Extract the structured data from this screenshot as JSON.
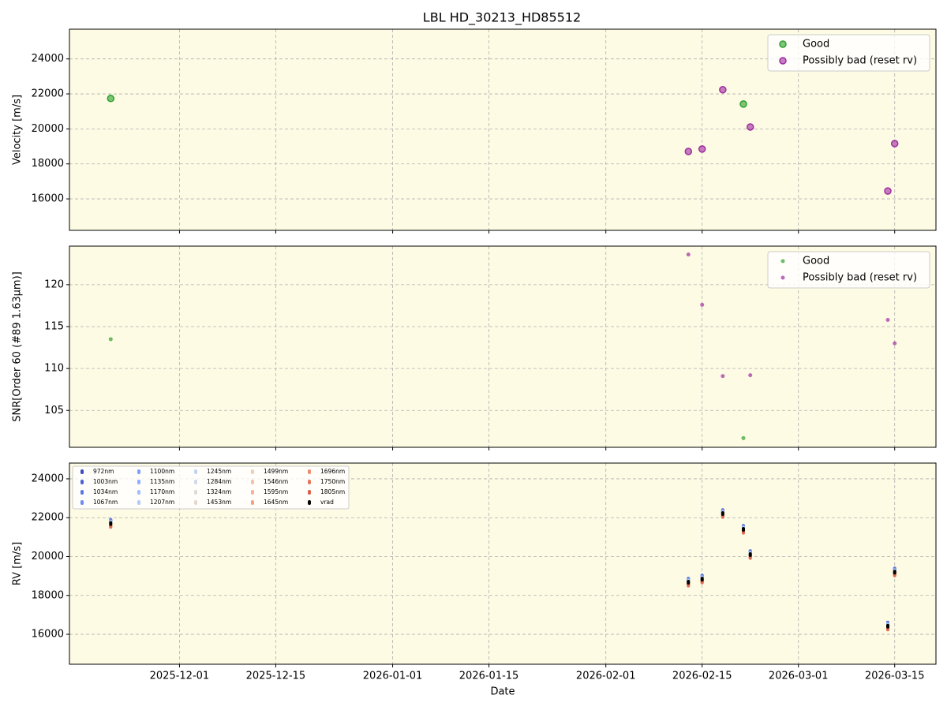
{
  "chart_data": [
    {
      "type": "scatter",
      "title": "LBL HD_30213_HD85512",
      "ylabel": "Velocity [m/s]",
      "x": [
        "2025-11-21",
        "2026-02-13",
        "2026-02-15",
        "2026-02-18",
        "2026-02-21",
        "2026-02-22",
        "2026-03-14",
        "2026-03-15"
      ],
      "xlim": [
        "2025-11-15",
        "2026-03-21"
      ],
      "xticks": [
        "2025-12-01",
        "2025-12-15",
        "2026-01-01",
        "2026-01-15",
        "2026-02-01",
        "2026-02-15",
        "2026-03-01",
        "2026-03-15"
      ],
      "ylim": [
        14200,
        25700
      ],
      "yticks": [
        16000,
        18000,
        20000,
        22000,
        24000
      ],
      "grid": true,
      "legend": "upper right",
      "series": [
        {
          "name": "Good",
          "color": "#2ca02c",
          "values": [
            21740,
            null,
            null,
            null,
            21420,
            null,
            null,
            null
          ]
        },
        {
          "name": "Possibly bad (reset rv)",
          "color": "#a02ca0",
          "values": [
            null,
            18710,
            18850,
            22240,
            null,
            20110,
            16450,
            19160
          ]
        }
      ]
    },
    {
      "type": "scatter",
      "ylabel": "SNR[Order 60 (#89 1.63μm)]",
      "x": [
        "2025-11-21",
        "2026-02-13",
        "2026-02-15",
        "2026-02-18",
        "2026-02-21",
        "2026-02-22",
        "2026-03-14",
        "2026-03-15"
      ],
      "xlim": [
        "2025-11-15",
        "2026-03-21"
      ],
      "xticks": [
        "2025-12-01",
        "2025-12-15",
        "2026-01-01",
        "2026-01-15",
        "2026-02-01",
        "2026-02-15",
        "2026-03-01",
        "2026-03-15"
      ],
      "ylim": [
        100.6,
        124.6
      ],
      "yticks": [
        105,
        110,
        115,
        120
      ],
      "grid": true,
      "legend": "upper right",
      "series": [
        {
          "name": "Good",
          "color": "#2ca02c",
          "values": [
            113.5,
            null,
            null,
            null,
            101.7,
            null,
            null,
            null
          ]
        },
        {
          "name": "Possibly bad (reset rv)",
          "color": "#a02ca0",
          "values": [
            null,
            123.6,
            117.6,
            109.1,
            null,
            109.2,
            115.8,
            113.0
          ]
        }
      ]
    },
    {
      "type": "scatter",
      "ylabel": "RV [m/s]",
      "xlabel": "Date",
      "x": [
        "2025-11-21",
        "2026-02-13",
        "2026-02-15",
        "2026-02-18",
        "2026-02-21",
        "2026-02-22",
        "2026-03-14",
        "2026-03-15"
      ],
      "xlim": [
        "2025-11-15",
        "2026-03-21"
      ],
      "xticks": [
        "2025-12-01",
        "2025-12-15",
        "2026-01-01",
        "2026-01-15",
        "2026-02-01",
        "2026-02-15",
        "2026-03-01",
        "2026-03-15"
      ],
      "ylim": [
        14460,
        24810
      ],
      "yticks": [
        16000,
        18000,
        20000,
        22000,
        24000
      ],
      "grid": true,
      "legend": "upper left",
      "series": [
        {
          "name": "972nm",
          "color": "#3b4cc0",
          "values": [
            21860,
            18840,
            19000,
            22370,
            21560,
            20260,
            16580,
            19360
          ]
        },
        {
          "name": "1003nm",
          "color": "#4a63d3",
          "values": [
            21840,
            18820,
            18980,
            22350,
            21540,
            20240,
            16560,
            19340
          ]
        },
        {
          "name": "1034nm",
          "color": "#5a78e4",
          "values": [
            21820,
            18800,
            18960,
            22330,
            21520,
            20220,
            16540,
            19320
          ]
        },
        {
          "name": "1067nm",
          "color": "#6b8df0",
          "values": [
            21800,
            18780,
            18940,
            22310,
            21500,
            20200,
            16520,
            19300
          ]
        },
        {
          "name": "1100nm",
          "color": "#7b9ff9",
          "values": [
            21790,
            18770,
            18930,
            22300,
            21490,
            20190,
            16510,
            19290
          ]
        },
        {
          "name": "1135nm",
          "color": "#8db0fe",
          "values": [
            21770,
            18750,
            18910,
            22280,
            21470,
            20170,
            16490,
            19270
          ]
        },
        {
          "name": "1170nm",
          "color": "#9ebeff",
          "values": [
            21760,
            18740,
            18900,
            22270,
            21460,
            20160,
            16480,
            19260
          ]
        },
        {
          "name": "1207nm",
          "color": "#afcafc",
          "values": [
            21740,
            18720,
            18880,
            22250,
            21440,
            20140,
            16460,
            19240
          ]
        },
        {
          "name": "1245nm",
          "color": "#c0d4f5",
          "values": [
            21730,
            18710,
            18870,
            22240,
            21430,
            20130,
            16450,
            19230
          ]
        },
        {
          "name": "1284nm",
          "color": "#cfdaea",
          "values": [
            21710,
            18690,
            18850,
            22220,
            21410,
            20110,
            16430,
            19210
          ]
        },
        {
          "name": "1324nm",
          "color": "#dddcdc",
          "values": [
            21700,
            18680,
            18840,
            22210,
            21400,
            20100,
            16420,
            19200
          ]
        },
        {
          "name": "1453nm",
          "color": "#e8d6cc",
          "values": [
            21680,
            18660,
            18820,
            22190,
            21380,
            20080,
            16400,
            19180
          ]
        },
        {
          "name": "1499nm",
          "color": "#f1cdba",
          "values": [
            21660,
            18640,
            18800,
            22170,
            21360,
            20060,
            16380,
            19160
          ]
        },
        {
          "name": "1546nm",
          "color": "#f5c0a7",
          "values": [
            21640,
            18620,
            18780,
            22150,
            21340,
            20040,
            16360,
            19140
          ]
        },
        {
          "name": "1595nm",
          "color": "#f7b194",
          "values": [
            21620,
            18600,
            18760,
            22130,
            21320,
            20020,
            16340,
            19120
          ]
        },
        {
          "name": "1645nm",
          "color": "#f4a081",
          "values": [
            21600,
            18580,
            18740,
            22110,
            21300,
            20000,
            16320,
            19100
          ]
        },
        {
          "name": "1696nm",
          "color": "#ee8c6e",
          "values": [
            21590,
            18570,
            18730,
            22100,
            21290,
            19990,
            16310,
            19090
          ]
        },
        {
          "name": "1750nm",
          "color": "#e5765c",
          "values": [
            21570,
            18550,
            18710,
            22080,
            21270,
            19970,
            16290,
            19070
          ]
        },
        {
          "name": "1805nm",
          "color": "#d8604c",
          "values": [
            21550,
            18530,
            18690,
            22060,
            21250,
            19950,
            16270,
            19050
          ]
        },
        {
          "name": "vrad",
          "color": "#000000",
          "values": [
            21700,
            18680,
            18840,
            22210,
            21400,
            20100,
            16420,
            19200
          ]
        }
      ]
    }
  ]
}
